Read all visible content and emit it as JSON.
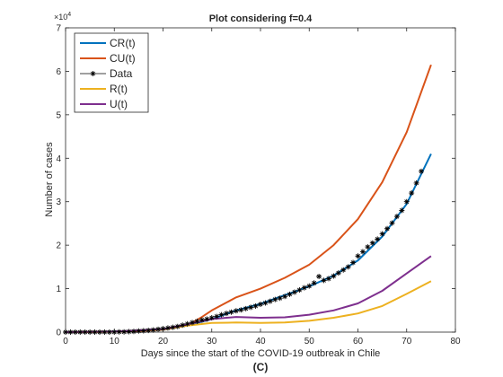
{
  "chart_data": {
    "type": "line",
    "title": "Plot considering f=0.4",
    "xlabel": "Days since the start of the COVID-19 outbreak in Chile",
    "ylabel": "Number of cases",
    "y_multiplier_label": "×10",
    "y_multiplier_exponent": "4",
    "caption": "(C)",
    "xlim": [
      0,
      80
    ],
    "ylim": [
      0,
      70000
    ],
    "x_ticks": [
      0,
      10,
      20,
      30,
      40,
      50,
      60,
      70,
      80
    ],
    "x_tick_labels": [
      "0",
      "10",
      "20",
      "30",
      "40",
      "50",
      "60",
      "70",
      "80"
    ],
    "y_ticks": [
      0,
      10000,
      20000,
      30000,
      40000,
      50000,
      60000,
      70000
    ],
    "y_tick_labels": [
      "0",
      "1",
      "2",
      "3",
      "4",
      "5",
      "6",
      "7"
    ],
    "grid": false,
    "legend_position": "top-left",
    "series": [
      {
        "name": "CR(t)",
        "color": "#0072BD",
        "style": "line",
        "points": [
          [
            0,
            0
          ],
          [
            5,
            50
          ],
          [
            10,
            150
          ],
          [
            15,
            300
          ],
          [
            20,
            700
          ],
          [
            25,
            1500
          ],
          [
            30,
            3000
          ],
          [
            35,
            5000
          ],
          [
            40,
            6500
          ],
          [
            45,
            8500
          ],
          [
            50,
            10500
          ],
          [
            55,
            13000
          ],
          [
            60,
            16500
          ],
          [
            65,
            22000
          ],
          [
            70,
            29500
          ],
          [
            75,
            41000
          ]
        ]
      },
      {
        "name": "CU(t)",
        "color": "#D95319",
        "style": "line",
        "points": [
          [
            0,
            0
          ],
          [
            5,
            30
          ],
          [
            10,
            100
          ],
          [
            15,
            250
          ],
          [
            20,
            600
          ],
          [
            25,
            1500
          ],
          [
            28,
            3500
          ],
          [
            30,
            5000
          ],
          [
            35,
            8000
          ],
          [
            40,
            10000
          ],
          [
            45,
            12500
          ],
          [
            50,
            15500
          ],
          [
            55,
            20000
          ],
          [
            60,
            26000
          ],
          [
            65,
            34500
          ],
          [
            70,
            46000
          ],
          [
            75,
            61500
          ]
        ]
      },
      {
        "name": "Data",
        "color": "#000000",
        "style": "marker",
        "marker": "asterisk",
        "points": [
          [
            0,
            0
          ],
          [
            1,
            0
          ],
          [
            2,
            0
          ],
          [
            3,
            0
          ],
          [
            4,
            0
          ],
          [
            5,
            0
          ],
          [
            6,
            0
          ],
          [
            7,
            0
          ],
          [
            8,
            0
          ],
          [
            9,
            0
          ],
          [
            10,
            0
          ],
          [
            11,
            50
          ],
          [
            12,
            50
          ],
          [
            13,
            100
          ],
          [
            14,
            150
          ],
          [
            15,
            250
          ],
          [
            16,
            300
          ],
          [
            17,
            400
          ],
          [
            18,
            500
          ],
          [
            19,
            650
          ],
          [
            20,
            800
          ],
          [
            21,
            950
          ],
          [
            22,
            1100
          ],
          [
            23,
            1300
          ],
          [
            24,
            1600
          ],
          [
            25,
            1900
          ],
          [
            26,
            2200
          ],
          [
            27,
            2500
          ],
          [
            28,
            2800
          ],
          [
            29,
            3000
          ],
          [
            30,
            3300
          ],
          [
            31,
            3600
          ],
          [
            32,
            4000
          ],
          [
            33,
            4300
          ],
          [
            34,
            4600
          ],
          [
            35,
            4900
          ],
          [
            36,
            5100
          ],
          [
            37,
            5400
          ],
          [
            38,
            5700
          ],
          [
            39,
            6000
          ],
          [
            40,
            6400
          ],
          [
            41,
            6700
          ],
          [
            42,
            7100
          ],
          [
            43,
            7500
          ],
          [
            44,
            7800
          ],
          [
            45,
            8200
          ],
          [
            46,
            8700
          ],
          [
            47,
            9200
          ],
          [
            48,
            9700
          ],
          [
            49,
            10200
          ],
          [
            50,
            10600
          ],
          [
            51,
            11300
          ],
          [
            52,
            12800
          ],
          [
            53,
            11900
          ],
          [
            54,
            12300
          ],
          [
            55,
            12900
          ],
          [
            56,
            13600
          ],
          [
            57,
            14300
          ],
          [
            58,
            15000
          ],
          [
            59,
            16000
          ],
          [
            60,
            17500
          ],
          [
            61,
            18500
          ],
          [
            62,
            19600
          ],
          [
            63,
            20500
          ],
          [
            64,
            21400
          ],
          [
            65,
            22600
          ],
          [
            66,
            23800
          ],
          [
            67,
            25100
          ],
          [
            68,
            26600
          ],
          [
            69,
            28000
          ],
          [
            70,
            30000
          ],
          [
            71,
            32000
          ],
          [
            72,
            34300
          ],
          [
            73,
            37000
          ]
        ]
      },
      {
        "name": "R(t)",
        "color": "#EDB120",
        "style": "line",
        "points": [
          [
            0,
            0
          ],
          [
            10,
            100
          ],
          [
            20,
            600
          ],
          [
            25,
            1500
          ],
          [
            30,
            2100
          ],
          [
            35,
            2200
          ],
          [
            40,
            2100
          ],
          [
            45,
            2200
          ],
          [
            50,
            2600
          ],
          [
            55,
            3300
          ],
          [
            60,
            4300
          ],
          [
            65,
            6000
          ],
          [
            70,
            8800
          ],
          [
            75,
            11700
          ]
        ]
      },
      {
        "name": "U(t)",
        "color": "#7E2F8E",
        "style": "line",
        "points": [
          [
            0,
            0
          ],
          [
            10,
            100
          ],
          [
            20,
            700
          ],
          [
            25,
            1800
          ],
          [
            30,
            3000
          ],
          [
            35,
            3500
          ],
          [
            40,
            3300
          ],
          [
            45,
            3400
          ],
          [
            50,
            4000
          ],
          [
            55,
            5000
          ],
          [
            60,
            6600
          ],
          [
            65,
            9500
          ],
          [
            70,
            13500
          ],
          [
            75,
            17500
          ]
        ]
      }
    ]
  }
}
